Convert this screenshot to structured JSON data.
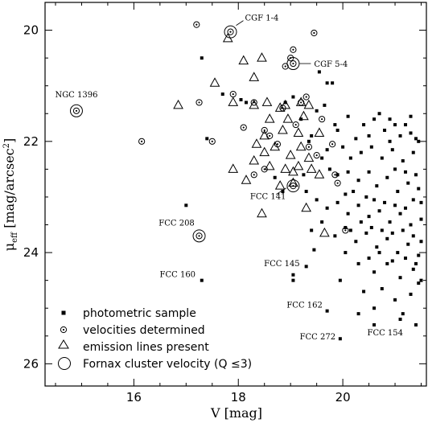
{
  "chart_data": {
    "type": "scatter",
    "title": "",
    "xlabel": "V [mag]",
    "ylabel_main": "μ",
    "ylabel_sub": "eff",
    "ylabel_rest": " [mag/arcsec",
    "ylabel_sup": "2",
    "ylabel_end": "]",
    "xlim": [
      14.3,
      21.6
    ],
    "ylim": [
      26.4,
      19.5
    ],
    "y_inverted": true,
    "xticks": [
      16,
      18,
      20
    ],
    "yticks": [
      20,
      22,
      24,
      26
    ],
    "xtick_labels": [
      "16",
      "18",
      "20"
    ],
    "ytick_labels": [
      "20",
      "22",
      "24",
      "26"
    ],
    "legend_position": "bottom-left",
    "legend": [
      {
        "marker": "square",
        "label": "photometric sample"
      },
      {
        "marker": "small-circle",
        "label": "velocities determined"
      },
      {
        "marker": "triangle",
        "label": "emission lines present"
      },
      {
        "marker": "big-circle",
        "label": "Fornax cluster velocity (Q ≤3)"
      }
    ],
    "annotations": [
      {
        "text": "CGF 1-4",
        "x": 17.85,
        "y": 20.03
      },
      {
        "text": "CGF 5-4",
        "x": 19.05,
        "y": 20.6
      },
      {
        "text": "NGC 1396",
        "x": 14.9,
        "y": 21.45
      },
      {
        "text": "FCC 141",
        "x": 19.0,
        "y": 22.75
      },
      {
        "text": "FCC 208",
        "x": 17.25,
        "y": 23.7
      },
      {
        "text": "FCC 160",
        "x": 17.3,
        "y": 24.5
      },
      {
        "text": "FCC 145",
        "x": 19.05,
        "y": 24.45
      },
      {
        "text": "FCC 162",
        "x": 19.7,
        "y": 25.05
      },
      {
        "text": "FCC 272",
        "x": 19.95,
        "y": 25.55
      },
      {
        "text": "FCC 154",
        "x": 21.15,
        "y": 25.3
      }
    ],
    "series": [
      {
        "name": "photometric sample",
        "marker": "square",
        "points": [
          [
            17.3,
            20.5
          ],
          [
            17.7,
            21.15
          ],
          [
            19.7,
            20.95
          ],
          [
            19.8,
            20.95
          ],
          [
            19.65,
            21.35
          ],
          [
            19.5,
            21.45
          ],
          [
            19.4,
            21.9
          ],
          [
            19.85,
            21.7
          ],
          [
            19.9,
            21.8
          ],
          [
            20.1,
            21.55
          ],
          [
            20.25,
            21.95
          ],
          [
            20.4,
            21.7
          ],
          [
            20.5,
            21.9
          ],
          [
            20.6,
            21.6
          ],
          [
            20.7,
            21.5
          ],
          [
            20.8,
            21.8
          ],
          [
            20.9,
            21.6
          ],
          [
            21.0,
            21.7
          ],
          [
            21.1,
            21.9
          ],
          [
            21.2,
            21.7
          ],
          [
            21.3,
            21.85
          ],
          [
            21.4,
            21.95
          ],
          [
            20.0,
            22.1
          ],
          [
            20.15,
            22.3
          ],
          [
            20.35,
            22.2
          ],
          [
            20.55,
            22.1
          ],
          [
            20.75,
            22.3
          ],
          [
            20.95,
            22.15
          ],
          [
            21.15,
            22.35
          ],
          [
            21.35,
            22.2
          ],
          [
            19.6,
            22.3
          ],
          [
            19.75,
            22.5
          ],
          [
            19.9,
            22.6
          ],
          [
            20.1,
            22.55
          ],
          [
            20.3,
            22.7
          ],
          [
            20.5,
            22.55
          ],
          [
            20.65,
            22.8
          ],
          [
            20.85,
            22.65
          ],
          [
            21.05,
            22.9
          ],
          [
            21.25,
            22.75
          ],
          [
            21.45,
            22.85
          ],
          [
            19.3,
            22.9
          ],
          [
            19.5,
            23.05
          ],
          [
            19.7,
            23.2
          ],
          [
            19.9,
            23.1
          ],
          [
            20.1,
            23.3
          ],
          [
            20.3,
            23.15
          ],
          [
            20.5,
            23.35
          ],
          [
            20.7,
            23.25
          ],
          [
            20.9,
            23.45
          ],
          [
            21.1,
            23.3
          ],
          [
            21.3,
            23.5
          ],
          [
            21.5,
            23.4
          ],
          [
            19.4,
            23.6
          ],
          [
            19.6,
            23.45
          ],
          [
            19.85,
            23.7
          ],
          [
            20.05,
            23.55
          ],
          [
            20.25,
            23.8
          ],
          [
            20.45,
            23.65
          ],
          [
            20.65,
            23.9
          ],
          [
            20.85,
            23.75
          ],
          [
            21.05,
            24.0
          ],
          [
            21.25,
            23.85
          ],
          [
            21.45,
            24.05
          ],
          [
            20.3,
            24.2
          ],
          [
            20.6,
            24.35
          ],
          [
            20.85,
            24.2
          ],
          [
            21.1,
            24.45
          ],
          [
            21.35,
            24.3
          ],
          [
            20.4,
            24.7
          ],
          [
            20.75,
            24.65
          ],
          [
            21.0,
            24.85
          ],
          [
            21.3,
            24.75
          ],
          [
            20.6,
            25.0
          ],
          [
            21.15,
            25.1
          ],
          [
            21.45,
            24.55
          ],
          [
            20.9,
            22.0
          ],
          [
            21.0,
            22.5
          ],
          [
            21.2,
            22.55
          ],
          [
            21.4,
            22.6
          ],
          [
            20.2,
            22.9
          ],
          [
            20.45,
            23.0
          ],
          [
            20.6,
            23.05
          ],
          [
            20.8,
            23.1
          ],
          [
            21.0,
            23.15
          ],
          [
            21.2,
            23.2
          ],
          [
            21.35,
            23.05
          ],
          [
            21.5,
            23.1
          ],
          [
            20.15,
            23.6
          ],
          [
            20.35,
            23.45
          ],
          [
            20.55,
            23.55
          ],
          [
            20.75,
            23.6
          ],
          [
            20.95,
            23.65
          ],
          [
            21.15,
            23.6
          ],
          [
            21.35,
            23.7
          ],
          [
            21.5,
            23.8
          ],
          [
            20.5,
            24.1
          ],
          [
            20.7,
            24.0
          ],
          [
            20.95,
            24.15
          ],
          [
            21.2,
            24.1
          ],
          [
            21.4,
            24.2
          ],
          [
            21.5,
            24.5
          ],
          [
            19.45,
            23.95
          ],
          [
            19.25,
            22.6
          ],
          [
            18.85,
            22.9
          ],
          [
            18.7,
            22.65
          ],
          [
            19.55,
            20.75
          ],
          [
            19.05,
            21.2
          ],
          [
            18.9,
            21.3
          ],
          [
            19.2,
            21.6
          ],
          [
            19.35,
            22.0
          ],
          [
            20.05,
            24.0
          ],
          [
            19.95,
            24.5
          ],
          [
            19.3,
            24.25
          ],
          [
            17.0,
            23.15
          ],
          [
            17.3,
            24.5
          ],
          [
            19.05,
            24.4
          ],
          [
            19.05,
            24.5
          ],
          [
            19.7,
            25.05
          ],
          [
            19.95,
            25.55
          ],
          [
            21.1,
            25.2
          ],
          [
            21.4,
            25.3
          ],
          [
            20.3,
            25.1
          ],
          [
            20.6,
            25.3
          ],
          [
            18.15,
            21.3
          ],
          [
            18.05,
            21.25
          ],
          [
            17.4,
            21.95
          ],
          [
            19.7,
            22.15
          ],
          [
            20.05,
            22.95
          ],
          [
            21.3,
            21.55
          ],
          [
            21.45,
            22.0
          ]
        ]
      },
      {
        "name": "velocities determined",
        "marker": "small-circle",
        "points": [
          [
            14.9,
            21.45
          ],
          [
            16.15,
            22.0
          ],
          [
            17.2,
            19.9
          ],
          [
            17.25,
            21.3
          ],
          [
            17.5,
            22.0
          ],
          [
            17.25,
            23.7
          ],
          [
            17.85,
            20.03
          ],
          [
            17.9,
            21.15
          ],
          [
            18.1,
            21.75
          ],
          [
            18.3,
            21.3
          ],
          [
            18.3,
            22.6
          ],
          [
            18.5,
            21.8
          ],
          [
            18.6,
            21.9
          ],
          [
            18.75,
            22.05
          ],
          [
            18.85,
            21.4
          ],
          [
            18.9,
            20.65
          ],
          [
            19.0,
            20.5
          ],
          [
            19.05,
            20.6
          ],
          [
            19.05,
            20.35
          ],
          [
            19.1,
            21.7
          ],
          [
            19.2,
            21.3
          ],
          [
            19.3,
            21.2
          ],
          [
            19.35,
            22.1
          ],
          [
            19.45,
            20.05
          ],
          [
            19.5,
            22.25
          ],
          [
            19.6,
            21.6
          ],
          [
            19.8,
            22.05
          ],
          [
            19.85,
            22.6
          ],
          [
            19.9,
            22.75
          ],
          [
            20.05,
            23.6
          ],
          [
            19.05,
            22.8
          ],
          [
            18.5,
            22.5
          ]
        ]
      },
      {
        "name": "emission lines present",
        "marker": "triangle",
        "points": [
          [
            17.8,
            20.15
          ],
          [
            18.1,
            20.55
          ],
          [
            18.45,
            20.5
          ],
          [
            18.3,
            20.85
          ],
          [
            17.55,
            20.95
          ],
          [
            16.85,
            21.35
          ],
          [
            17.9,
            21.3
          ],
          [
            18.3,
            21.35
          ],
          [
            18.55,
            21.3
          ],
          [
            18.8,
            21.4
          ],
          [
            18.9,
            21.35
          ],
          [
            19.2,
            21.3
          ],
          [
            19.35,
            21.35
          ],
          [
            18.6,
            21.6
          ],
          [
            18.95,
            21.6
          ],
          [
            19.25,
            21.55
          ],
          [
            18.5,
            21.9
          ],
          [
            18.85,
            21.8
          ],
          [
            19.15,
            21.85
          ],
          [
            19.55,
            21.85
          ],
          [
            18.35,
            22.05
          ],
          [
            18.7,
            22.1
          ],
          [
            19.0,
            22.25
          ],
          [
            19.35,
            22.3
          ],
          [
            17.9,
            22.5
          ],
          [
            18.3,
            22.35
          ],
          [
            18.6,
            22.45
          ],
          [
            18.9,
            22.5
          ],
          [
            19.15,
            22.45
          ],
          [
            19.4,
            22.5
          ],
          [
            18.15,
            22.7
          ],
          [
            18.8,
            22.8
          ],
          [
            19.05,
            22.75
          ],
          [
            19.55,
            22.6
          ],
          [
            19.3,
            23.2
          ],
          [
            19.65,
            23.65
          ],
          [
            18.45,
            23.3
          ],
          [
            19.05,
            22.55
          ],
          [
            18.5,
            22.2
          ],
          [
            19.2,
            22.1
          ]
        ]
      },
      {
        "name": "Fornax cluster velocity (Q ≤3)",
        "marker": "big-circle",
        "points": [
          [
            14.9,
            21.45
          ],
          [
            17.85,
            20.03
          ],
          [
            19.05,
            20.6
          ],
          [
            17.25,
            23.7
          ],
          [
            19.05,
            22.8
          ]
        ]
      }
    ]
  }
}
